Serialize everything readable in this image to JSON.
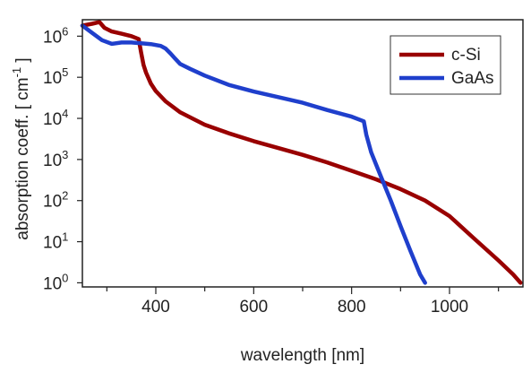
{
  "chart_data": {
    "type": "line",
    "title": "",
    "xlabel": "wavelength [nm]",
    "ylabel": {
      "main": "absorption coeff. [ cm",
      "sup": "-1",
      "close": " ]"
    },
    "xlim": [
      250,
      1150
    ],
    "ylim_log10": [
      -0.1,
      6.4
    ],
    "y_scale": "log",
    "grid": false,
    "legend_position": "top-right",
    "x_ticks": [
      {
        "value": 400,
        "label": "400"
      },
      {
        "value": 600,
        "label": "600"
      },
      {
        "value": 800,
        "label": "800"
      },
      {
        "value": 1000,
        "label": "1000"
      }
    ],
    "y_ticks": [
      {
        "exp": 0,
        "base": "10",
        "sup": "0"
      },
      {
        "exp": 1,
        "base": "10",
        "sup": "1"
      },
      {
        "exp": 2,
        "base": "10",
        "sup": "2"
      },
      {
        "exp": 3,
        "base": "10",
        "sup": "3"
      },
      {
        "exp": 4,
        "base": "10",
        "sup": "4"
      },
      {
        "exp": 5,
        "base": "10",
        "sup": "5"
      },
      {
        "exp": 6,
        "base": "10",
        "sup": "6"
      }
    ],
    "series": [
      {
        "name": "c-Si",
        "color": "#990000",
        "x": [
          250,
          270,
          285,
          295,
          310,
          330,
          350,
          365,
          370,
          375,
          380,
          390,
          400,
          420,
          450,
          500,
          550,
          600,
          650,
          700,
          750,
          800,
          850,
          900,
          950,
          1000,
          1050,
          1100,
          1130,
          1145
        ],
        "y": [
          1800000.0,
          2000000.0,
          2200000.0,
          1600000.0,
          1300000.0,
          1150000.0,
          1000000.0,
          850000.0,
          400000.0,
          200000.0,
          130000.0,
          70000.0,
          46000.0,
          26000.0,
          14000.0,
          7000.0,
          4300.0,
          2800.0,
          1900.0,
          1300.0,
          850,
          530,
          330,
          190,
          100,
          42,
          12,
          3.5,
          1.6,
          1.0
        ]
      },
      {
        "name": "GaAs",
        "color": "#1f3fcc",
        "x": [
          250,
          270,
          290,
          310,
          330,
          350,
          370,
          390,
          410,
          420,
          430,
          440,
          450,
          470,
          500,
          550,
          600,
          650,
          700,
          750,
          800,
          825,
          830,
          840,
          860,
          880,
          900,
          920,
          940,
          950
        ],
        "y": [
          1800000.0,
          1200000.0,
          800000.0,
          650000.0,
          700000.0,
          700000.0,
          670000.0,
          640000.0,
          580000.0,
          500000.0,
          380000.0,
          280000.0,
          210000.0,
          160000.0,
          110000.0,
          65000.0,
          45000.0,
          33000.0,
          24000.0,
          16000.0,
          11000.0,
          8500.0,
          4000.0,
          1500.0,
          380,
          100,
          24,
          6,
          1.6,
          1.0
        ]
      }
    ]
  }
}
